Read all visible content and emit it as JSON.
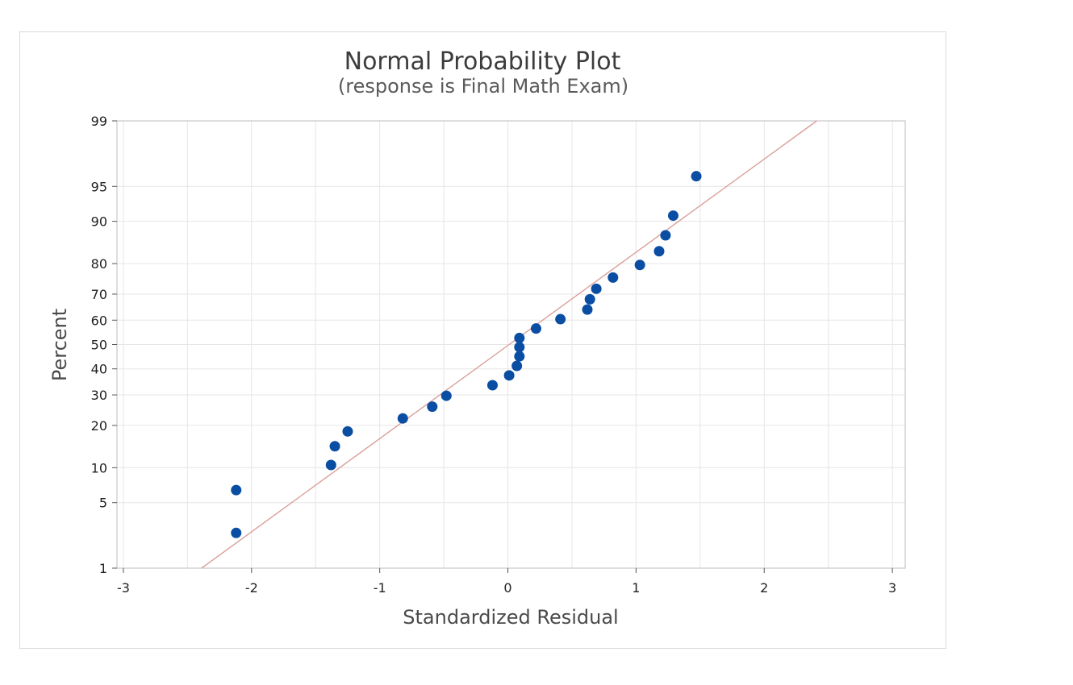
{
  "chart_data": {
    "type": "scatter",
    "title": "Normal Probability Plot",
    "subtitle": "(response is Final Math Exam)",
    "xlabel": "Standardized Residual",
    "ylabel": "Percent",
    "xlim": [
      -3.05,
      3.1
    ],
    "ylim": [
      1,
      99
    ],
    "y_scale": "normal-probability",
    "x_ticks": [
      -3,
      -2,
      -1,
      0,
      1,
      2,
      3
    ],
    "x_tick_labels": [
      "-3",
      "-2",
      "-1",
      "0",
      "1",
      "2",
      "3"
    ],
    "y_ticks": [
      1,
      5,
      10,
      20,
      30,
      40,
      50,
      60,
      70,
      80,
      90,
      95,
      99
    ],
    "y_tick_labels": [
      "1",
      "5",
      "10",
      "20",
      "30",
      "40",
      "50",
      "60",
      "70",
      "80",
      "90",
      "95",
      "99"
    ],
    "grid": true,
    "fit_line": {
      "x": [
        -2.39,
        2.41
      ],
      "y": [
        1,
        99
      ],
      "color": "#d9a09a"
    },
    "colors": {
      "points": "#0a4ea3",
      "grid": "#e6e6e6",
      "axis": "#c8c8c8"
    },
    "points": [
      {
        "x": -2.12,
        "y": 2.5
      },
      {
        "x": -2.12,
        "y": 6.5
      },
      {
        "x": -1.38,
        "y": 10.5
      },
      {
        "x": -1.35,
        "y": 14.5
      },
      {
        "x": -1.25,
        "y": 18.3
      },
      {
        "x": -0.82,
        "y": 22.1
      },
      {
        "x": -0.59,
        "y": 25.9
      },
      {
        "x": -0.48,
        "y": 29.7
      },
      {
        "x": -0.12,
        "y": 33.6
      },
      {
        "x": 0.01,
        "y": 37.4
      },
      {
        "x": 0.07,
        "y": 41.2
      },
      {
        "x": 0.09,
        "y": 45.1
      },
      {
        "x": 0.09,
        "y": 48.9
      },
      {
        "x": 0.09,
        "y": 52.7
      },
      {
        "x": 0.22,
        "y": 56.6
      },
      {
        "x": 0.41,
        "y": 60.4
      },
      {
        "x": 0.62,
        "y": 64.2
      },
      {
        "x": 0.64,
        "y": 68.1
      },
      {
        "x": 0.69,
        "y": 71.9
      },
      {
        "x": 0.82,
        "y": 75.7
      },
      {
        "x": 1.03,
        "y": 79.6
      },
      {
        "x": 1.18,
        "y": 83.4
      },
      {
        "x": 1.23,
        "y": 87.2
      },
      {
        "x": 1.29,
        "y": 91.0
      },
      {
        "x": 1.47,
        "y": 96.0
      }
    ]
  }
}
